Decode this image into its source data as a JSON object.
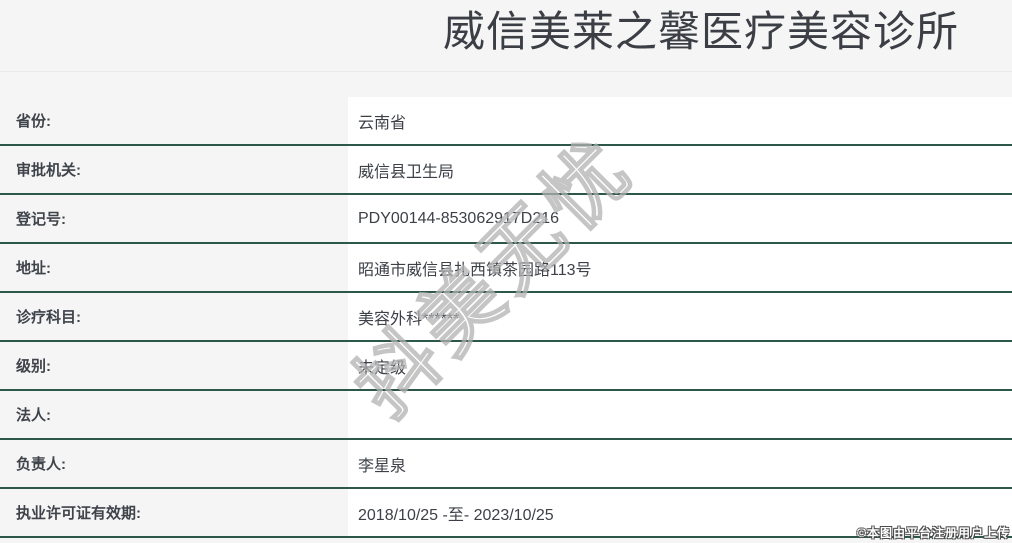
{
  "header": {
    "title": "威信美莱之馨医疗美容诊所"
  },
  "table": {
    "rows": [
      {
        "label": "省份:",
        "value": "云南省"
      },
      {
        "label": "审批机关:",
        "value": "威信县卫生局"
      },
      {
        "label": "登记号:",
        "value": "PDY00144-853062917D216"
      },
      {
        "label": "地址:",
        "value": "昭通市威信县扎西镇茶园路113号"
      },
      {
        "label": "诊疗科目:",
        "value": "美容外科******"
      },
      {
        "label": "级别:",
        "value": "未定级"
      },
      {
        "label": "法人:",
        "value": ""
      },
      {
        "label": "负责人:",
        "value": "李星泉"
      },
      {
        "label": "执业许可证有效期:",
        "value": "2018/10/25 -至- 2023/10/25"
      }
    ]
  },
  "watermark": {
    "text": "抖美无忧"
  },
  "footer": {
    "credit": "©本图由平台注册用户上传"
  },
  "colors": {
    "page_bg": "#f5f5f5",
    "value_bg": "#ffffff",
    "row_border": "#2e574c",
    "title_color": "#3b3e44"
  }
}
